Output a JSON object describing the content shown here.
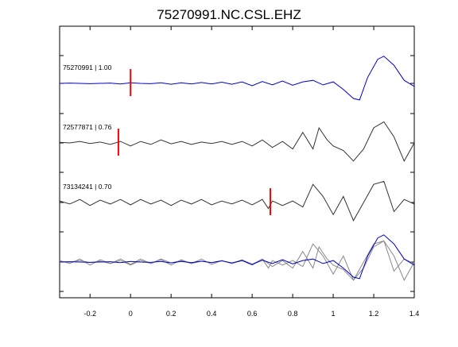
{
  "chart_data": {
    "type": "line",
    "title": "75270991.NC.CSL.EHZ",
    "xlabel": "",
    "ylabel": "",
    "xlim": [
      -0.35,
      1.4
    ],
    "x_ticks": [
      -0.2,
      0,
      0.2,
      0.4,
      0.6,
      0.8,
      1,
      1.2,
      1.4
    ],
    "x_tick_labels": [
      "-0.2",
      "0",
      "0.2",
      "0.4",
      "0.6",
      "0.8",
      "1",
      "1.2",
      "1.4"
    ],
    "grid": false,
    "legend": "none",
    "colors": {
      "reference": "#0000cc",
      "correlated": "#333333",
      "overlay": "#888888",
      "pick": "#ff0000"
    },
    "traces": [
      {
        "label": "75270991 | 1.00",
        "pick_time": 0.0,
        "color": "#0000cc",
        "points": [
          [
            -0.35,
            0.0
          ],
          [
            -0.3,
            0.01
          ],
          [
            -0.2,
            -0.01
          ],
          [
            -0.1,
            0.01
          ],
          [
            -0.05,
            -0.02
          ],
          [
            0.0,
            0.02
          ],
          [
            0.05,
            0.0
          ],
          [
            0.1,
            -0.01
          ],
          [
            0.15,
            0.02
          ],
          [
            0.2,
            -0.03
          ],
          [
            0.25,
            0.02
          ],
          [
            0.3,
            -0.02
          ],
          [
            0.35,
            0.03
          ],
          [
            0.4,
            -0.02
          ],
          [
            0.45,
            0.04
          ],
          [
            0.5,
            -0.03
          ],
          [
            0.55,
            0.05
          ],
          [
            0.6,
            -0.08
          ],
          [
            0.65,
            0.06
          ],
          [
            0.7,
            -0.05
          ],
          [
            0.75,
            0.08
          ],
          [
            0.8,
            -0.06
          ],
          [
            0.85,
            0.05
          ],
          [
            0.9,
            0.1
          ],
          [
            0.95,
            -0.05
          ],
          [
            1.0,
            0.05
          ],
          [
            1.05,
            -0.2
          ],
          [
            1.1,
            -0.5
          ],
          [
            1.13,
            -0.55
          ],
          [
            1.17,
            0.2
          ],
          [
            1.22,
            0.8
          ],
          [
            1.25,
            0.9
          ],
          [
            1.3,
            0.6
          ],
          [
            1.35,
            0.1
          ],
          [
            1.4,
            -0.1
          ]
        ]
      },
      {
        "label": "72577871 | 0.76",
        "pick_time": -0.06,
        "color": "#333333",
        "points": [
          [
            -0.35,
            0.02
          ],
          [
            -0.3,
            0.0
          ],
          [
            -0.25,
            0.05
          ],
          [
            -0.2,
            -0.02
          ],
          [
            -0.15,
            0.03
          ],
          [
            -0.1,
            -0.05
          ],
          [
            -0.05,
            0.05
          ],
          [
            0.0,
            -0.1
          ],
          [
            0.05,
            0.05
          ],
          [
            0.1,
            -0.05
          ],
          [
            0.15,
            0.1
          ],
          [
            0.2,
            -0.03
          ],
          [
            0.25,
            0.05
          ],
          [
            0.3,
            -0.05
          ],
          [
            0.35,
            0.03
          ],
          [
            0.4,
            -0.02
          ],
          [
            0.45,
            0.05
          ],
          [
            0.5,
            -0.05
          ],
          [
            0.55,
            0.05
          ],
          [
            0.6,
            -0.1
          ],
          [
            0.65,
            0.1
          ],
          [
            0.7,
            -0.15
          ],
          [
            0.75,
            0.05
          ],
          [
            0.8,
            -0.2
          ],
          [
            0.85,
            0.35
          ],
          [
            0.9,
            -0.2
          ],
          [
            0.93,
            0.5
          ],
          [
            0.97,
            0.1
          ],
          [
            1.0,
            -0.1
          ],
          [
            1.05,
            -0.25
          ],
          [
            1.1,
            -0.6
          ],
          [
            1.15,
            -0.2
          ],
          [
            1.2,
            0.5
          ],
          [
            1.25,
            0.7
          ],
          [
            1.3,
            0.2
          ],
          [
            1.35,
            -0.6
          ],
          [
            1.4,
            0.0
          ]
        ]
      },
      {
        "label": "73134241 | 0.70",
        "pick_time": 0.69,
        "color": "#333333",
        "points": [
          [
            -0.35,
            0.05
          ],
          [
            -0.3,
            -0.05
          ],
          [
            -0.25,
            0.1
          ],
          [
            -0.2,
            -0.1
          ],
          [
            -0.15,
            0.08
          ],
          [
            -0.1,
            -0.05
          ],
          [
            -0.05,
            0.1
          ],
          [
            0.0,
            -0.08
          ],
          [
            0.05,
            0.1
          ],
          [
            0.1,
            -0.05
          ],
          [
            0.15,
            0.08
          ],
          [
            0.2,
            -0.1
          ],
          [
            0.25,
            0.08
          ],
          [
            0.3,
            -0.05
          ],
          [
            0.35,
            0.1
          ],
          [
            0.4,
            -0.08
          ],
          [
            0.45,
            0.05
          ],
          [
            0.5,
            -0.05
          ],
          [
            0.55,
            0.08
          ],
          [
            0.6,
            -0.08
          ],
          [
            0.65,
            0.1
          ],
          [
            0.68,
            -0.2
          ],
          [
            0.7,
            0.05
          ],
          [
            0.75,
            -0.1
          ],
          [
            0.8,
            0.05
          ],
          [
            0.85,
            -0.15
          ],
          [
            0.9,
            0.6
          ],
          [
            0.95,
            0.2
          ],
          [
            1.0,
            -0.4
          ],
          [
            1.05,
            0.2
          ],
          [
            1.1,
            -0.6
          ],
          [
            1.15,
            0.0
          ],
          [
            1.2,
            0.6
          ],
          [
            1.25,
            0.7
          ],
          [
            1.3,
            -0.3
          ],
          [
            1.35,
            0.1
          ],
          [
            1.4,
            -0.05
          ]
        ]
      }
    ]
  }
}
